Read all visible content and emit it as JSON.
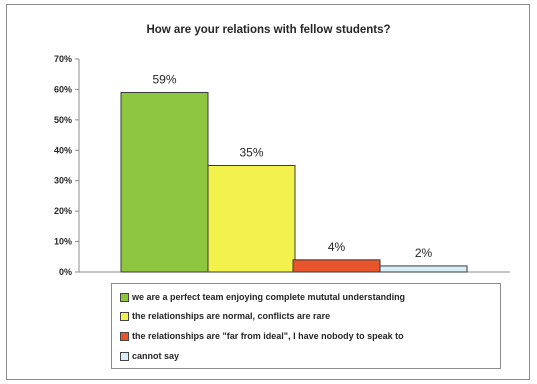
{
  "chart_data": {
    "type": "bar",
    "title": "How are your relations with fellow students?",
    "categories": [
      "we are a perfect team enjoying complete mututal understanding",
      "the relationships are normal, conflicts are rare",
      "the relationships are \"far from ideal\", I have nobody to speak to",
      "cannot say"
    ],
    "values": [
      59,
      35,
      4,
      2
    ],
    "data_labels": [
      "59%",
      "35%",
      "4%",
      "2%"
    ],
    "colors": [
      "#8ec63f",
      "#f3f24d",
      "#e8552c",
      "#d8eef7"
    ],
    "y_ticks": [
      "0%",
      "10%",
      "20%",
      "30%",
      "40%",
      "50%",
      "60%",
      "70%"
    ],
    "ylim": [
      0,
      70
    ],
    "grid": false,
    "legend_position": "bottom"
  }
}
